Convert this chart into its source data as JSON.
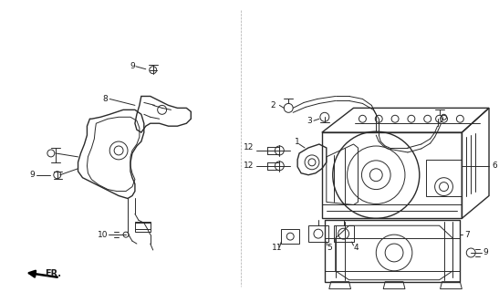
{
  "bg_color": "#ffffff",
  "fig_width": 5.47,
  "fig_height": 3.2,
  "dpi": 100,
  "line_color": "#2a2a2a",
  "label_color": "#1a1a1a",
  "fr_text": "FR."
}
